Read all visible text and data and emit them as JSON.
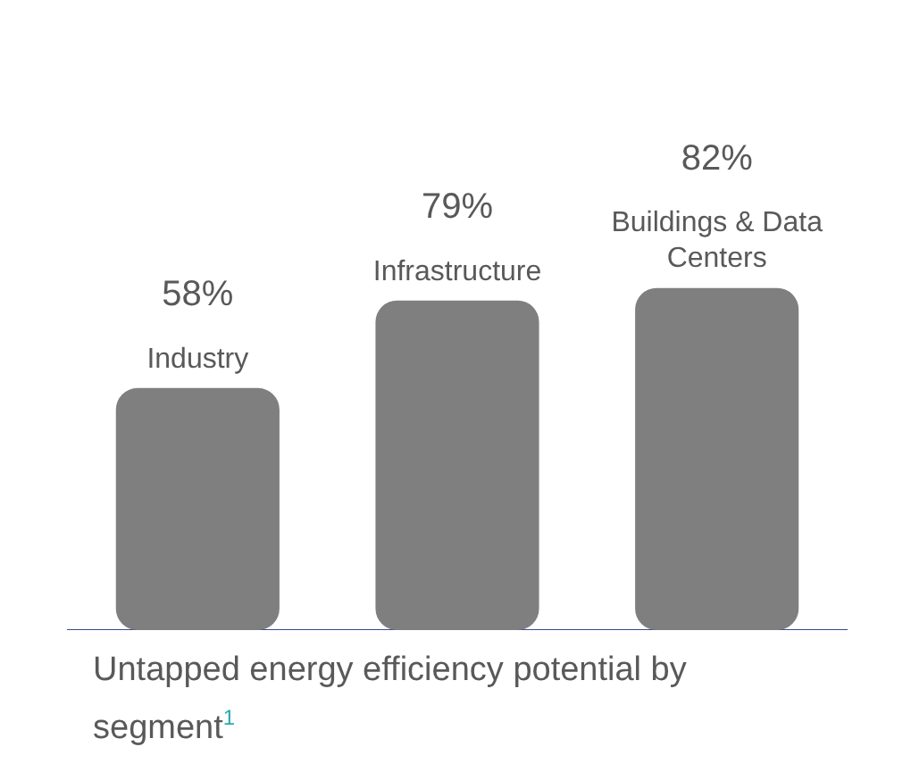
{
  "chart_data": {
    "type": "bar",
    "categories": [
      "Industry",
      "Infrastructure",
      "Buildings & Data Centers"
    ],
    "values": [
      58,
      79,
      82
    ],
    "color": "#7f7f7f",
    "value_labels": [
      "58%",
      "79%",
      "82%"
    ],
    "grid": false,
    "legend": false,
    "annotations": [
      "Untapped energy efficiency potential by segment$^{1}$"
    ]
  }
}
